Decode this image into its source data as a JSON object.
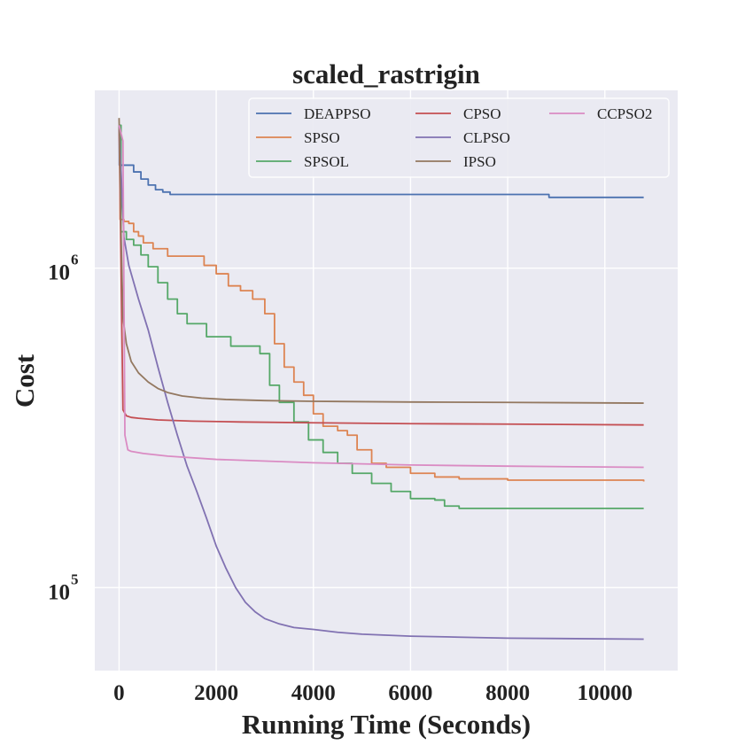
{
  "chart_data": {
    "type": "line",
    "title": "scaled_rastrigin",
    "xlabel": "Running Time (Seconds)",
    "ylabel": "Cost",
    "xlim": [
      -500,
      11500
    ],
    "ylim": [
      55000,
      3600000
    ],
    "yscale": "log",
    "grid": true,
    "legend_position": "top-right",
    "xticks": [
      {
        "value": 0,
        "label": "0"
      },
      {
        "value": 2000,
        "label": "2000"
      },
      {
        "value": 4000,
        "label": "4000"
      },
      {
        "value": 6000,
        "label": "6000"
      },
      {
        "value": 8000,
        "label": "8000"
      },
      {
        "value": 10000,
        "label": "10000"
      }
    ],
    "yticks": [
      {
        "value": 100000,
        "base": "10",
        "exp": "5"
      },
      {
        "value": 1000000,
        "base": "10",
        "exp": "6"
      }
    ],
    "series": [
      {
        "name": "DEAPPSO",
        "color": "#4c72b0",
        "step": true,
        "x": [
          0,
          5,
          250,
          300,
          450,
          600,
          750,
          900,
          1050,
          4000,
          8800,
          8850,
          10800
        ],
        "y": [
          2800000,
          2100000,
          2100000,
          2000000,
          1900000,
          1820000,
          1760000,
          1730000,
          1700000,
          1700000,
          1700000,
          1665000,
          1665000
        ]
      },
      {
        "name": "SPSO",
        "color": "#dd8452",
        "step": true,
        "x": [
          0,
          20,
          100,
          200,
          300,
          400,
          500,
          700,
          1000,
          1500,
          1750,
          2000,
          2250,
          2500,
          2750,
          3000,
          3200,
          3400,
          3600,
          3800,
          4000,
          4200,
          4500,
          4700,
          4900,
          5200,
          5500,
          6000,
          6500,
          7000,
          8000,
          10800
        ],
        "y": [
          2800000,
          1420000,
          1400000,
          1380000,
          1300000,
          1260000,
          1200000,
          1150000,
          1090000,
          1090000,
          1020000,
          960000,
          880000,
          850000,
          800000,
          720000,
          580000,
          490000,
          440000,
          400000,
          350000,
          320000,
          310000,
          300000,
          270000,
          245000,
          238000,
          228000,
          222000,
          219000,
          217000,
          215000
        ]
      },
      {
        "name": "SPSOL",
        "color": "#55a868",
        "step": true,
        "x": [
          0,
          40,
          150,
          300,
          450,
          600,
          800,
          1000,
          1200,
          1400,
          1800,
          2300,
          2900,
          3100,
          3300,
          3600,
          3900,
          4200,
          4500,
          4800,
          5200,
          5600,
          6000,
          6500,
          6700,
          7000,
          10800
        ],
        "y": [
          2800000,
          1300000,
          1230000,
          1180000,
          1100000,
          1010000,
          900000,
          800000,
          720000,
          670000,
          610000,
          570000,
          540000,
          430000,
          380000,
          330000,
          290000,
          265000,
          245000,
          228000,
          212000,
          200000,
          190000,
          188000,
          180000,
          177000,
          177000
        ]
      },
      {
        "name": "CPSO",
        "color": "#c44e52",
        "step": false,
        "x": [
          0,
          80,
          150,
          250,
          400,
          800,
          1500,
          2500,
          4000,
          6000,
          8000,
          10800
        ],
        "y": [
          2800000,
          360000,
          345000,
          341000,
          339000,
          335000,
          332000,
          330000,
          328000,
          326000,
          325000,
          323000
        ]
      },
      {
        "name": "CLPSO",
        "color": "#8172b2",
        "step": false,
        "x": [
          0,
          100,
          200,
          400,
          600,
          800,
          1000,
          1200,
          1400,
          1600,
          1800,
          2000,
          2200,
          2400,
          2600,
          2800,
          3000,
          3300,
          3600,
          4000,
          4500,
          5000,
          6000,
          7000,
          8000,
          10800
        ],
        "y": [
          2800000,
          1250000,
          1020000,
          800000,
          640000,
          490000,
          380000,
          300000,
          240000,
          200000,
          165000,
          135000,
          115000,
          100000,
          90000,
          84000,
          80000,
          77000,
          75000,
          74000,
          72500,
          71500,
          70500,
          70000,
          69500,
          69000
        ]
      },
      {
        "name": "IPSO",
        "color": "#937860",
        "step": false,
        "x": [
          0,
          40,
          80,
          150,
          250,
          400,
          600,
          800,
          1000,
          1300,
          1700,
          2200,
          3000,
          4000,
          6000,
          8000,
          10800
        ],
        "y": [
          2950000,
          1300000,
          700000,
          580000,
          510000,
          470000,
          440000,
          420000,
          408000,
          398000,
          392000,
          388000,
          385000,
          383000,
          381000,
          380000,
          378000
        ]
      },
      {
        "name": "CCPSO2",
        "color": "#da8bc3",
        "step": false,
        "x": [
          0,
          80,
          120,
          180,
          250,
          500,
          1000,
          2000,
          4000,
          6000,
          8000,
          10800
        ],
        "y": [
          2800000,
          2500000,
          300000,
          270000,
          267000,
          263000,
          258000,
          252000,
          246000,
          242000,
          240000,
          238000
        ]
      }
    ]
  }
}
